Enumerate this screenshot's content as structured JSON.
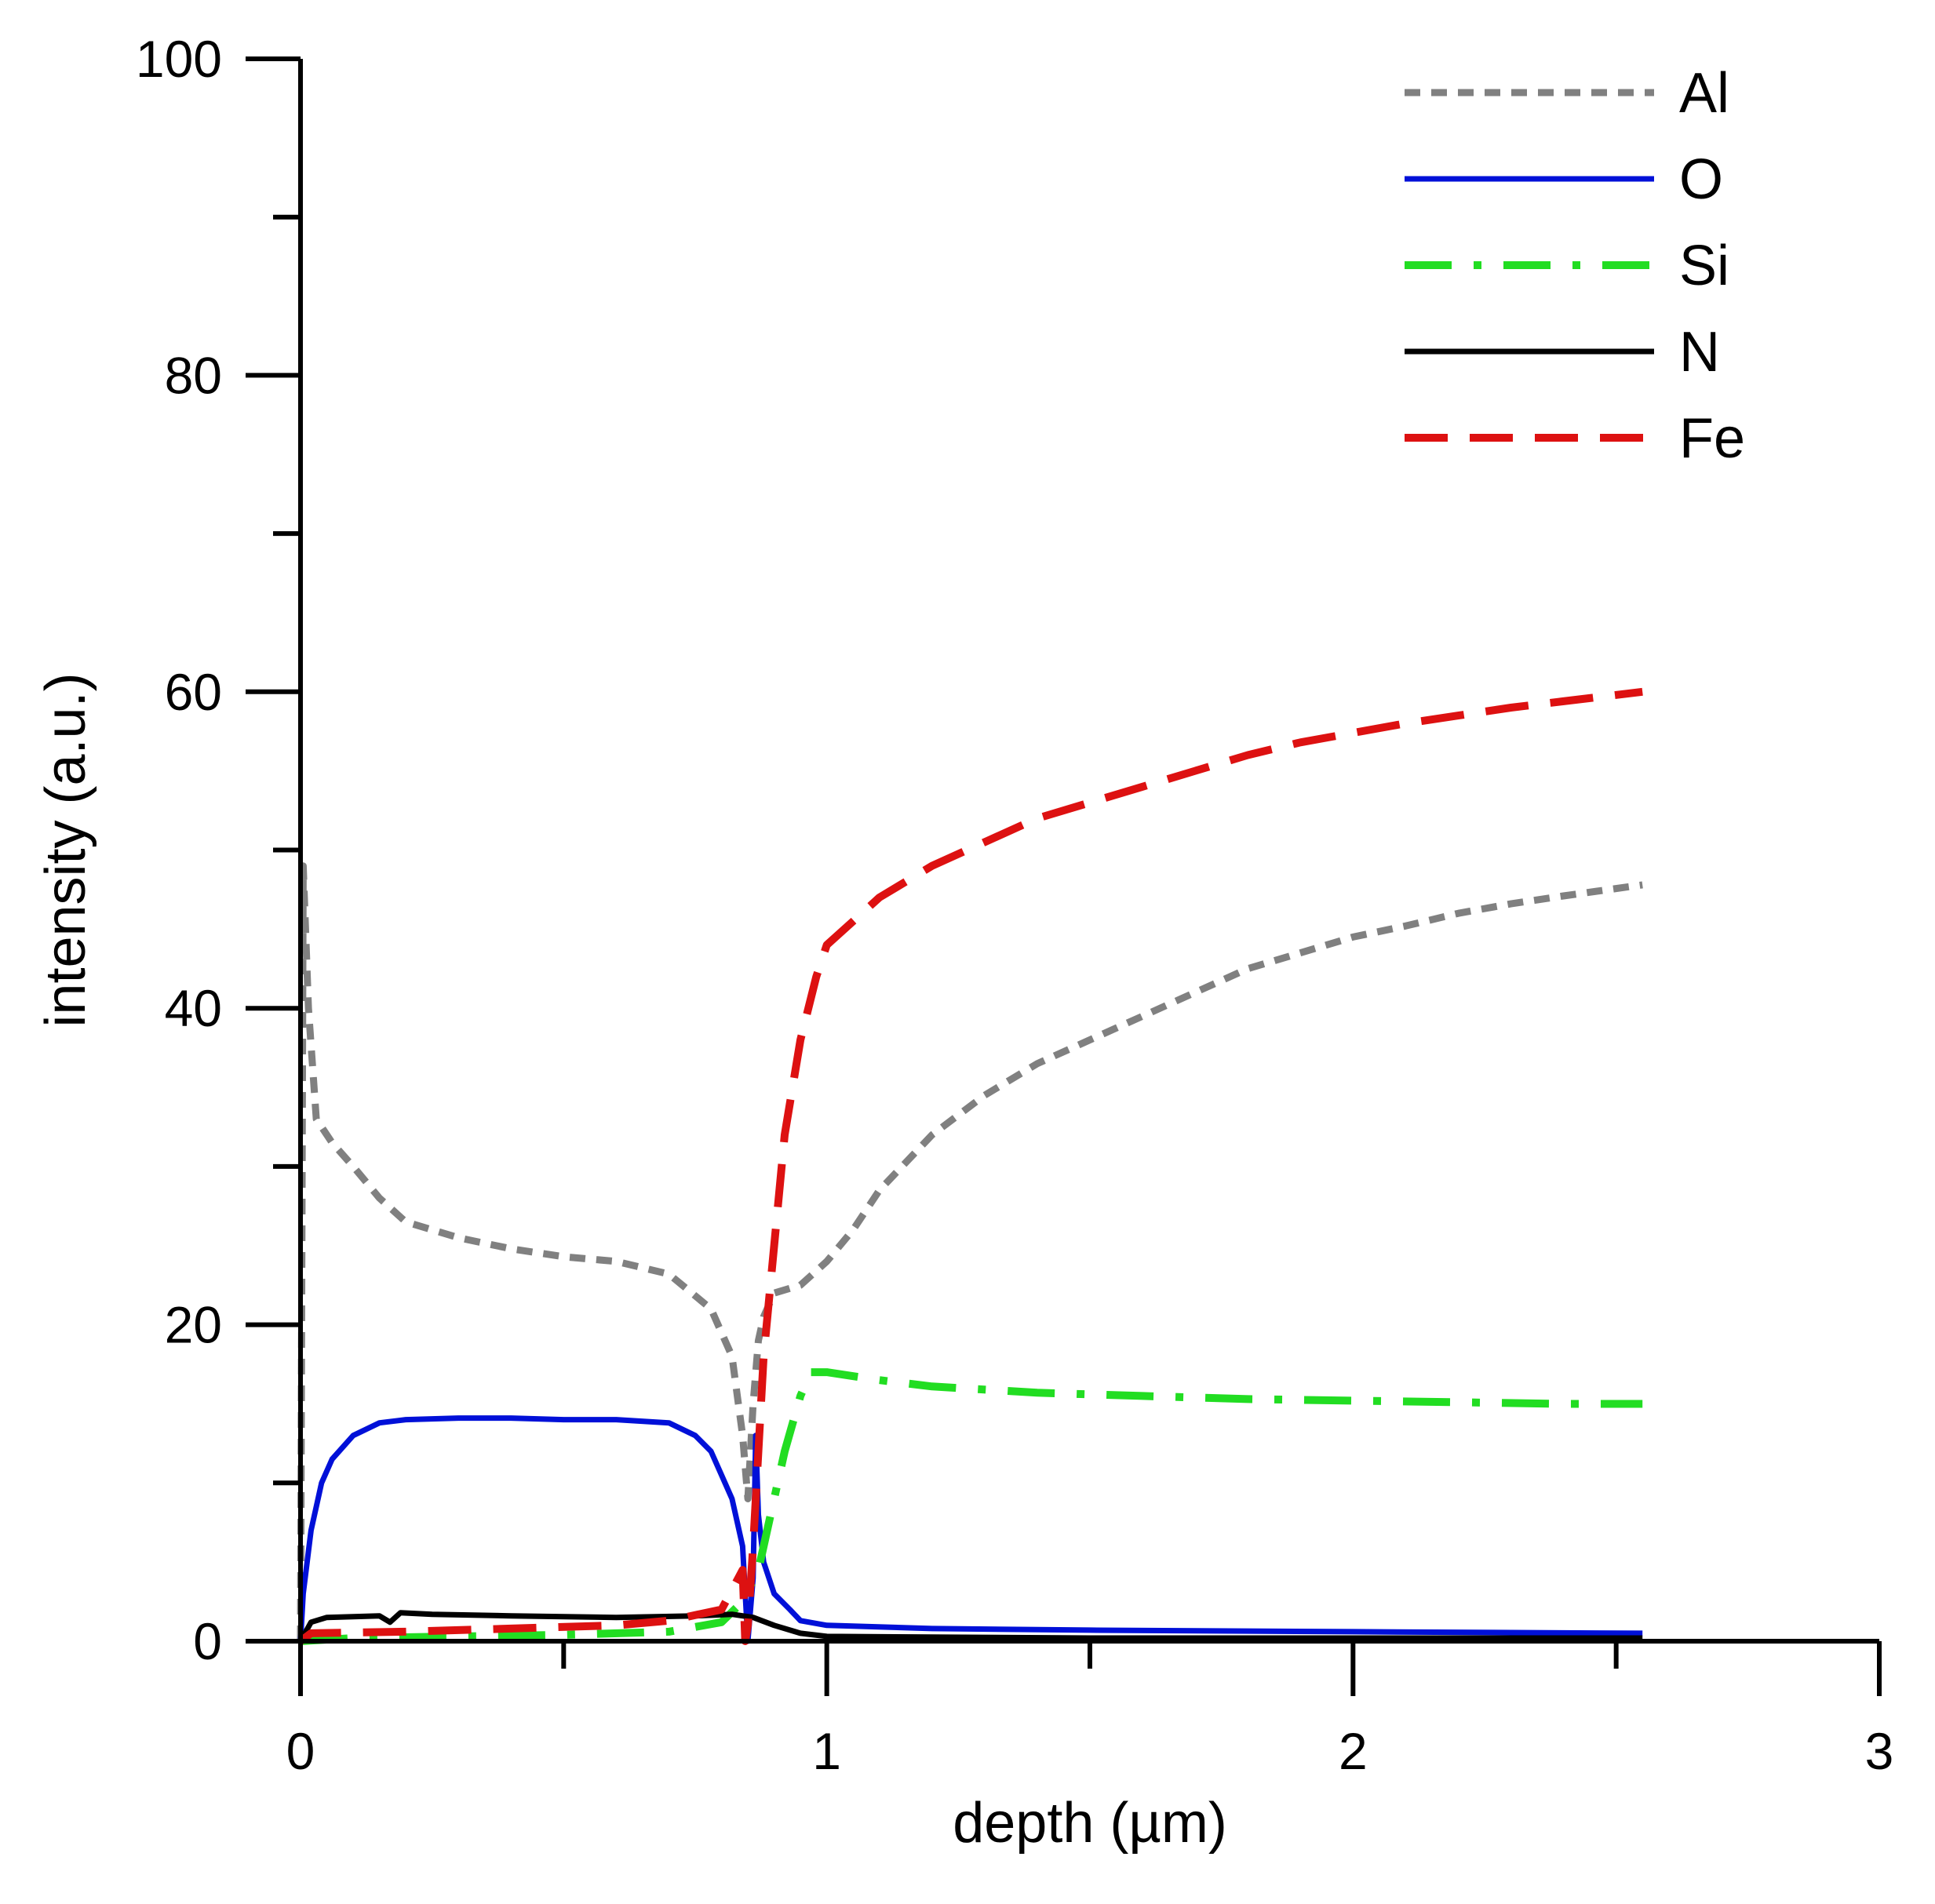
{
  "chart_data": {
    "type": "line",
    "title": "",
    "xlabel": "depth (µm)",
    "ylabel": "intensity (a.u.)",
    "xlim": [
      0,
      3
    ],
    "ylim": [
      0,
      100
    ],
    "xticks": [
      0,
      1,
      2,
      3
    ],
    "xtick_labels": [
      "0",
      "1",
      "2",
      "3"
    ],
    "xminor_ticks": [
      0.5,
      1.5,
      2.5
    ],
    "yticks": [
      0,
      20,
      40,
      60,
      80,
      100
    ],
    "ytick_labels": [
      "0",
      "20",
      "40",
      "60",
      "80",
      "100"
    ],
    "yminor_ticks": [
      10,
      30,
      50,
      70,
      90
    ],
    "grid": false,
    "legend_position": "top-right",
    "series": [
      {
        "name": "Al",
        "color": "#808080",
        "style": "short-dash",
        "points": [
          [
            0,
            0
          ],
          [
            0.005,
            49
          ],
          [
            0.015,
            40
          ],
          [
            0.03,
            33
          ],
          [
            0.06,
            31.5
          ],
          [
            0.1,
            30
          ],
          [
            0.15,
            28
          ],
          [
            0.2,
            26.5
          ],
          [
            0.3,
            25.5
          ],
          [
            0.4,
            24.8
          ],
          [
            0.5,
            24.3
          ],
          [
            0.6,
            24
          ],
          [
            0.7,
            23.2
          ],
          [
            0.78,
            21
          ],
          [
            0.82,
            18
          ],
          [
            0.84,
            13
          ],
          [
            0.85,
            9
          ],
          [
            0.86,
            15
          ],
          [
            0.87,
            19
          ],
          [
            0.88,
            20.5
          ],
          [
            0.9,
            22
          ],
          [
            0.95,
            22.5
          ],
          [
            1.0,
            24
          ],
          [
            1.05,
            26
          ],
          [
            1.1,
            28.5
          ],
          [
            1.2,
            32
          ],
          [
            1.3,
            34.5
          ],
          [
            1.4,
            36.5
          ],
          [
            1.5,
            38
          ],
          [
            1.6,
            39.5
          ],
          [
            1.7,
            41
          ],
          [
            1.8,
            42.5
          ],
          [
            1.9,
            43.5
          ],
          [
            2.0,
            44.5
          ],
          [
            2.1,
            45.2
          ],
          [
            2.2,
            46
          ],
          [
            2.3,
            46.6
          ],
          [
            2.4,
            47.1
          ],
          [
            2.55,
            47.8
          ]
        ]
      },
      {
        "name": "O",
        "color": "#0010d8",
        "style": "solid",
        "points": [
          [
            0,
            0
          ],
          [
            0.005,
            3
          ],
          [
            0.02,
            7
          ],
          [
            0.04,
            10
          ],
          [
            0.06,
            11.5
          ],
          [
            0.1,
            13
          ],
          [
            0.15,
            13.8
          ],
          [
            0.2,
            14
          ],
          [
            0.3,
            14.1
          ],
          [
            0.4,
            14.1
          ],
          [
            0.5,
            14
          ],
          [
            0.6,
            14
          ],
          [
            0.7,
            13.8
          ],
          [
            0.75,
            13
          ],
          [
            0.78,
            12
          ],
          [
            0.8,
            10.5
          ],
          [
            0.82,
            9
          ],
          [
            0.84,
            6
          ],
          [
            0.85,
            0
          ],
          [
            0.86,
            4
          ],
          [
            0.865,
            13
          ],
          [
            0.87,
            8
          ],
          [
            0.88,
            5
          ],
          [
            0.9,
            3
          ],
          [
            0.93,
            2
          ],
          [
            0.95,
            1.3
          ],
          [
            1.0,
            1.0
          ],
          [
            1.2,
            0.8
          ],
          [
            1.5,
            0.7
          ],
          [
            2.0,
            0.6
          ],
          [
            2.55,
            0.5
          ]
        ]
      },
      {
        "name": "Si",
        "color": "#22dd22",
        "style": "dash-dot",
        "points": [
          [
            0,
            0
          ],
          [
            0.1,
            0.2
          ],
          [
            0.5,
            0.4
          ],
          [
            0.7,
            0.6
          ],
          [
            0.8,
            1.2
          ],
          [
            0.84,
            2.5
          ],
          [
            0.87,
            4.5
          ],
          [
            0.88,
            6
          ],
          [
            0.9,
            9
          ],
          [
            0.92,
            12
          ],
          [
            0.95,
            15.5
          ],
          [
            0.97,
            17
          ],
          [
            1.0,
            17
          ],
          [
            1.1,
            16.5
          ],
          [
            1.2,
            16.1
          ],
          [
            1.4,
            15.7
          ],
          [
            1.6,
            15.5
          ],
          [
            1.8,
            15.3
          ],
          [
            2.0,
            15.2
          ],
          [
            2.2,
            15.1
          ],
          [
            2.4,
            15.0
          ],
          [
            2.55,
            15.0
          ]
        ]
      },
      {
        "name": "N",
        "color": "#000000",
        "style": "solid",
        "points": [
          [
            0,
            0
          ],
          [
            0.02,
            1.2
          ],
          [
            0.05,
            1.5
          ],
          [
            0.15,
            1.6
          ],
          [
            0.17,
            1.2
          ],
          [
            0.19,
            1.8
          ],
          [
            0.25,
            1.7
          ],
          [
            0.4,
            1.6
          ],
          [
            0.6,
            1.5
          ],
          [
            0.75,
            1.6
          ],
          [
            0.82,
            1.7
          ],
          [
            0.86,
            1.5
          ],
          [
            0.9,
            1.0
          ],
          [
            0.95,
            0.5
          ],
          [
            1.0,
            0.3
          ],
          [
            1.5,
            0.2
          ],
          [
            2.0,
            0.2
          ],
          [
            2.55,
            0.2
          ]
        ]
      },
      {
        "name": "Fe",
        "color": "#dd1111",
        "style": "long-dash",
        "points": [
          [
            0,
            0
          ],
          [
            0.02,
            0.5
          ],
          [
            0.2,
            0.6
          ],
          [
            0.4,
            0.8
          ],
          [
            0.6,
            1.0
          ],
          [
            0.7,
            1.3
          ],
          [
            0.8,
            2
          ],
          [
            0.84,
            4.5
          ],
          [
            0.845,
            0
          ],
          [
            0.85,
            1
          ],
          [
            0.86,
            6
          ],
          [
            0.87,
            12
          ],
          [
            0.88,
            18
          ],
          [
            0.9,
            25
          ],
          [
            0.92,
            32
          ],
          [
            0.95,
            38
          ],
          [
            0.98,
            42
          ],
          [
            1.0,
            44
          ],
          [
            1.05,
            45.5
          ],
          [
            1.1,
            47
          ],
          [
            1.2,
            49
          ],
          [
            1.3,
            50.5
          ],
          [
            1.4,
            52
          ],
          [
            1.5,
            53
          ],
          [
            1.6,
            54
          ],
          [
            1.7,
            55
          ],
          [
            1.8,
            56
          ],
          [
            1.9,
            56.8
          ],
          [
            2.0,
            57.4
          ],
          [
            2.1,
            58
          ],
          [
            2.2,
            58.5
          ],
          [
            2.3,
            59
          ],
          [
            2.4,
            59.4
          ],
          [
            2.55,
            60
          ]
        ]
      }
    ]
  }
}
